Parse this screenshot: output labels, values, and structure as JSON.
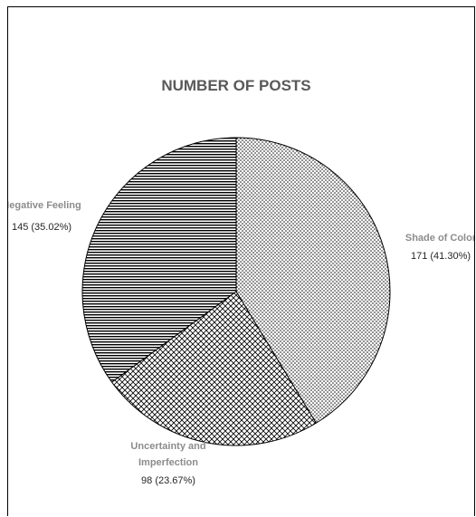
{
  "chart_data": {
    "type": "pie",
    "title": "NUMBER OF POSTS",
    "slices": [
      {
        "label": "Shade of Color",
        "value": 171,
        "percent_label": "171 (41.30%)",
        "pattern": "dots"
      },
      {
        "label": "Uncertainty and Imperfection",
        "label_lines": [
          "Uncertainty and",
          "Imperfection"
        ],
        "value": 98,
        "percent_label": "98 (23.67%)",
        "pattern": "crosshatch"
      },
      {
        "label": "Negative Feeling",
        "value": 145,
        "percent_label": "145 (35.02%)",
        "pattern": "horizontal-lines"
      }
    ],
    "start_angle": "12 o'clock",
    "direction": "clockwise",
    "legend": "none",
    "colors": {
      "title": "#595959",
      "category_label": "#8c8c8c",
      "value_label": "#262626",
      "outline": "#000000"
    }
  }
}
